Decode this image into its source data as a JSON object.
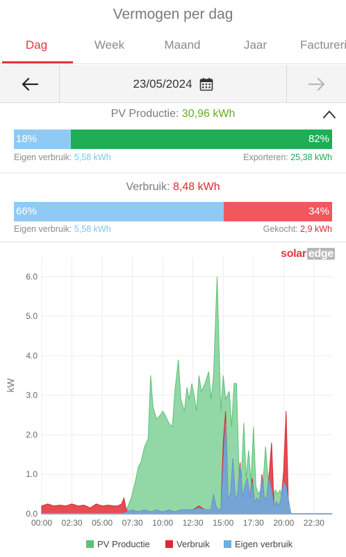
{
  "header": {
    "title": "Vermogen per dag"
  },
  "tabs": [
    {
      "label": "Dag",
      "active": true
    },
    {
      "label": "Week",
      "active": false
    },
    {
      "label": "Maand",
      "active": false
    },
    {
      "label": "Jaar",
      "active": false
    },
    {
      "label": "Facturering",
      "active": false
    }
  ],
  "datebar": {
    "date": "23/05/2024"
  },
  "pv": {
    "label": "PV Productie:",
    "value": "30,96 kWh",
    "self_pct": "18%",
    "self_fraction": 0.18,
    "export_pct": "82%",
    "self_label": "Eigen verbruik:",
    "self_value": "5,58 kWh",
    "export_label": "Exporteren:",
    "export_value": "25,38 kWh"
  },
  "usage": {
    "label": "Verbruik:",
    "value": "8,48 kWh",
    "self_pct": "66%",
    "self_fraction": 0.66,
    "bought_pct": "34%",
    "self_label": "Eigen verbruik:",
    "self_value": "5,58 kWh",
    "bought_label": "Gekocht:",
    "bought_value": "2,9 kWh"
  },
  "colors": {
    "pv": "#22a658",
    "pv_fill": "#7fd196",
    "usage": "#e0262e",
    "self": "#7cc3f1",
    "self_fill": "#6aaee3",
    "accent": "#e5363d"
  },
  "brand": {
    "logo_a": "solar",
    "logo_b": "edge"
  },
  "chart_data": {
    "type": "area",
    "ylabel": "kW",
    "ylim": [
      0,
      6.5
    ],
    "yticks": [
      "0.0",
      "1.0",
      "2.0",
      "3.0",
      "4.0",
      "5.0",
      "6.0"
    ],
    "xlim": [
      0,
      24
    ],
    "xticks": [
      "00:00",
      "02:30",
      "05:00",
      "07:30",
      "10:00",
      "12:30",
      "15:00",
      "17:30",
      "20:00",
      "22:30"
    ],
    "xtick_values": [
      0,
      2.5,
      5,
      7.5,
      10,
      12.5,
      15,
      17.5,
      20,
      22.5
    ],
    "grid": true,
    "legend_position": "bottom",
    "series": [
      {
        "name": "PV Productie",
        "x": [
          0,
          6.6,
          7.0,
          7.4,
          7.8,
          8.0,
          8.2,
          8.5,
          8.8,
          9.0,
          9.2,
          9.5,
          9.8,
          10.0,
          10.2,
          10.5,
          10.8,
          11.0,
          11.3,
          11.5,
          11.8,
          12.0,
          12.2,
          12.4,
          12.6,
          12.8,
          13.0,
          13.2,
          13.5,
          13.8,
          14.0,
          14.2,
          14.5,
          14.8,
          15.0,
          15.2,
          15.5,
          15.7,
          15.9,
          16.1,
          16.3,
          16.5,
          16.7,
          16.9,
          17.1,
          17.3,
          17.5,
          17.7,
          17.9,
          18.1,
          18.3,
          18.5,
          18.7,
          18.9,
          19.1,
          19.3,
          19.5,
          19.7,
          19.9,
          20.1,
          20.3,
          20.6,
          24
        ],
        "values": [
          0,
          0,
          0.1,
          0.4,
          0.9,
          1.2,
          1.3,
          1.7,
          1.9,
          3.5,
          2.7,
          2.4,
          2.5,
          2.6,
          2.5,
          2.3,
          2.2,
          3.1,
          3.9,
          2.9,
          2.6,
          3.2,
          2.9,
          3.3,
          3.0,
          2.6,
          3.5,
          3.1,
          3.3,
          3.6,
          2.9,
          3.5,
          6.0,
          2.6,
          3.5,
          2.9,
          3.1,
          2.2,
          3.3,
          3.3,
          1.1,
          0.9,
          2.3,
          0.9,
          1.6,
          0.8,
          2.2,
          0.7,
          0.5,
          0.6,
          0.8,
          1.7,
          0.9,
          0.8,
          0.4,
          0.6,
          0.5,
          0.6,
          0.4,
          0.2,
          0.1,
          0,
          0
        ]
      },
      {
        "name": "Verbruik",
        "x": [
          0,
          0.5,
          1.0,
          1.5,
          2.0,
          2.5,
          3.0,
          3.5,
          4.0,
          4.5,
          5.0,
          5.5,
          6.0,
          6.3,
          6.6,
          6.8,
          7.0,
          7.2,
          7.5,
          8.0,
          8.5,
          9.0,
          9.5,
          10.0,
          10.5,
          11.0,
          11.5,
          12.0,
          12.5,
          13.0,
          13.5,
          14.0,
          14.2,
          14.4,
          14.6,
          14.8,
          15.0,
          15.2,
          15.4,
          15.6,
          15.8,
          16.0,
          16.2,
          16.4,
          16.6,
          16.8,
          17.0,
          17.2,
          17.4,
          17.6,
          17.8,
          18.0,
          18.2,
          18.4,
          18.6,
          18.8,
          19.0,
          19.2,
          19.4,
          19.6,
          19.8,
          20.0,
          20.2,
          20.4,
          20.6,
          24
        ],
        "values": [
          0.2,
          0.25,
          0.2,
          0.22,
          0.2,
          0.25,
          0.2,
          0.22,
          0.15,
          0.25,
          0.2,
          0.22,
          0.2,
          0.2,
          0.25,
          0.4,
          0.1,
          0.05,
          0.1,
          0.05,
          0.1,
          0.05,
          0.1,
          0.05,
          0.1,
          0.05,
          0.1,
          0.1,
          0.1,
          0.2,
          0.1,
          0.1,
          0.5,
          0.2,
          0.1,
          0.1,
          1.8,
          2.6,
          0.4,
          0.5,
          1.4,
          0.4,
          0.5,
          1.3,
          0.4,
          0.7,
          0.9,
          0.4,
          0.9,
          0.3,
          0.4,
          0.3,
          1.0,
          0.4,
          0.4,
          1.0,
          1.8,
          0.2,
          0.3,
          0.2,
          0.4,
          1.1,
          2.6,
          0.1,
          0,
          0
        ]
      },
      {
        "name": "Eigen verbruik",
        "x": [
          0,
          6.6,
          7.0,
          7.5,
          8.0,
          8.5,
          9.0,
          9.5,
          10.0,
          10.5,
          11.0,
          11.5,
          12.0,
          12.5,
          13.0,
          13.5,
          14.0,
          14.2,
          14.4,
          14.6,
          14.8,
          15.0,
          15.2,
          15.4,
          15.6,
          15.8,
          16.0,
          16.2,
          16.4,
          16.6,
          16.8,
          17.0,
          17.2,
          17.4,
          17.6,
          17.8,
          18.0,
          18.2,
          18.4,
          18.6,
          18.8,
          19.0,
          19.2,
          19.4,
          19.6,
          19.8,
          20.0,
          20.2,
          20.6,
          24
        ],
        "values": [
          0,
          0,
          0.05,
          0.1,
          0.05,
          0.1,
          0.05,
          0.1,
          0.05,
          0.1,
          0.05,
          0.1,
          0.1,
          0.1,
          0.15,
          0.1,
          0.1,
          0.5,
          0.2,
          0.1,
          0.1,
          1.2,
          2.3,
          0.4,
          0.5,
          1.4,
          0.4,
          0.5,
          1.2,
          0.4,
          0.7,
          0.9,
          0.4,
          0.8,
          0.3,
          0.4,
          0.3,
          0.9,
          0.4,
          0.4,
          0.9,
          0.6,
          0.2,
          0.3,
          0.2,
          0.4,
          0.8,
          0.7,
          0,
          0
        ]
      }
    ]
  }
}
